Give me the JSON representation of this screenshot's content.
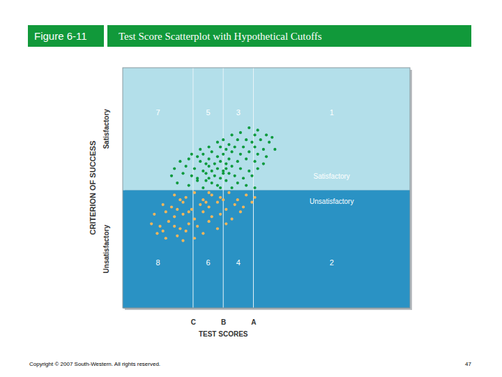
{
  "chart_data": {
    "type": "scatter",
    "figure_label": "Figure 6-11",
    "title": "Test Score Scatterplot with Hypothetical Cutoffs",
    "x_label": "TEST SCORES",
    "y_label": "CRITERION OF SUCCESS",
    "y_bands": [
      "Unsatisfactory",
      "Satisfactory"
    ],
    "y_cutoff": 49,
    "xlim": [
      0,
      100
    ],
    "ylim": [
      0,
      100
    ],
    "xticks": [
      {
        "value": 24.5,
        "label": "C"
      },
      {
        "value": 35,
        "label": "B"
      },
      {
        "value": 45.5,
        "label": "A"
      }
    ],
    "tick_labels": "x",
    "regions": {
      "upper": [
        "7",
        "5",
        "3",
        "1"
      ],
      "lower": [
        "8",
        "6",
        "4",
        "2"
      ]
    },
    "marker": "circle",
    "series": [
      {
        "name": "Satisfactory",
        "color": "#0d9a3e",
        "x": [
          44,
          47,
          41,
          50,
          38,
          46,
          52,
          35,
          40,
          43,
          48,
          33,
          45,
          51,
          37,
          30,
          34,
          39,
          42,
          46,
          49,
          53,
          27,
          36,
          24,
          28,
          31,
          35,
          38,
          41,
          44,
          47,
          50,
          33,
          26,
          20,
          23,
          27,
          30,
          32,
          34,
          37,
          40,
          43,
          46,
          49,
          29,
          36,
          18,
          22,
          25,
          28,
          30,
          33,
          35,
          38,
          41,
          44,
          47,
          31,
          36,
          17,
          21,
          24,
          26,
          29,
          32,
          34,
          37,
          39,
          42,
          45,
          30,
          35,
          19,
          23,
          26,
          28,
          31,
          33,
          36,
          38,
          40,
          43,
          46,
          29,
          34
        ],
        "values": [
          75,
          74,
          73,
          72,
          72,
          72,
          71,
          70,
          70,
          70,
          70,
          69,
          69,
          69,
          68,
          67,
          67,
          67,
          67,
          67,
          66,
          66,
          66,
          66,
          64,
          64,
          65,
          64,
          65,
          64,
          65,
          64,
          63,
          63,
          63,
          61,
          62,
          61,
          62,
          60,
          61,
          62,
          61,
          62,
          61,
          60,
          60,
          60,
          58,
          59,
          58,
          57,
          59,
          58,
          57,
          59,
          58,
          57,
          58,
          57,
          58,
          55,
          56,
          55,
          54,
          56,
          55,
          54,
          56,
          55,
          54,
          55,
          54,
          56,
          52,
          51,
          53,
          50,
          52,
          51,
          53,
          50,
          52,
          51,
          50,
          53,
          50
        ]
      },
      {
        "name": "Unsatisfactory",
        "color": "#f3b65a",
        "x": [
          18,
          22,
          25,
          28,
          31,
          34,
          37,
          40,
          43,
          46,
          20,
          30,
          35,
          14,
          17,
          21,
          24,
          27,
          30,
          33,
          36,
          39,
          42,
          45,
          19,
          29,
          11,
          15,
          18,
          21,
          25,
          28,
          31,
          34,
          38,
          41,
          23,
          10,
          13,
          16,
          20,
          23,
          26,
          30,
          33,
          36,
          18,
          12,
          15,
          19,
          22,
          25,
          28,
          14,
          21
        ],
        "values": [
          47,
          46,
          48,
          45,
          47,
          46,
          48,
          45,
          47,
          46,
          45,
          48,
          45,
          43,
          42,
          44,
          41,
          43,
          42,
          44,
          41,
          43,
          42,
          44,
          41,
          44,
          39,
          40,
          38,
          39,
          37,
          40,
          38,
          39,
          37,
          40,
          40,
          35,
          34,
          36,
          33,
          35,
          34,
          36,
          33,
          35,
          34,
          31,
          29,
          30,
          32,
          29,
          31,
          32,
          28
        ]
      }
    ],
    "copyright": "Copyright © 2007 South-Western. All rights reserved.",
    "page": "47"
  }
}
